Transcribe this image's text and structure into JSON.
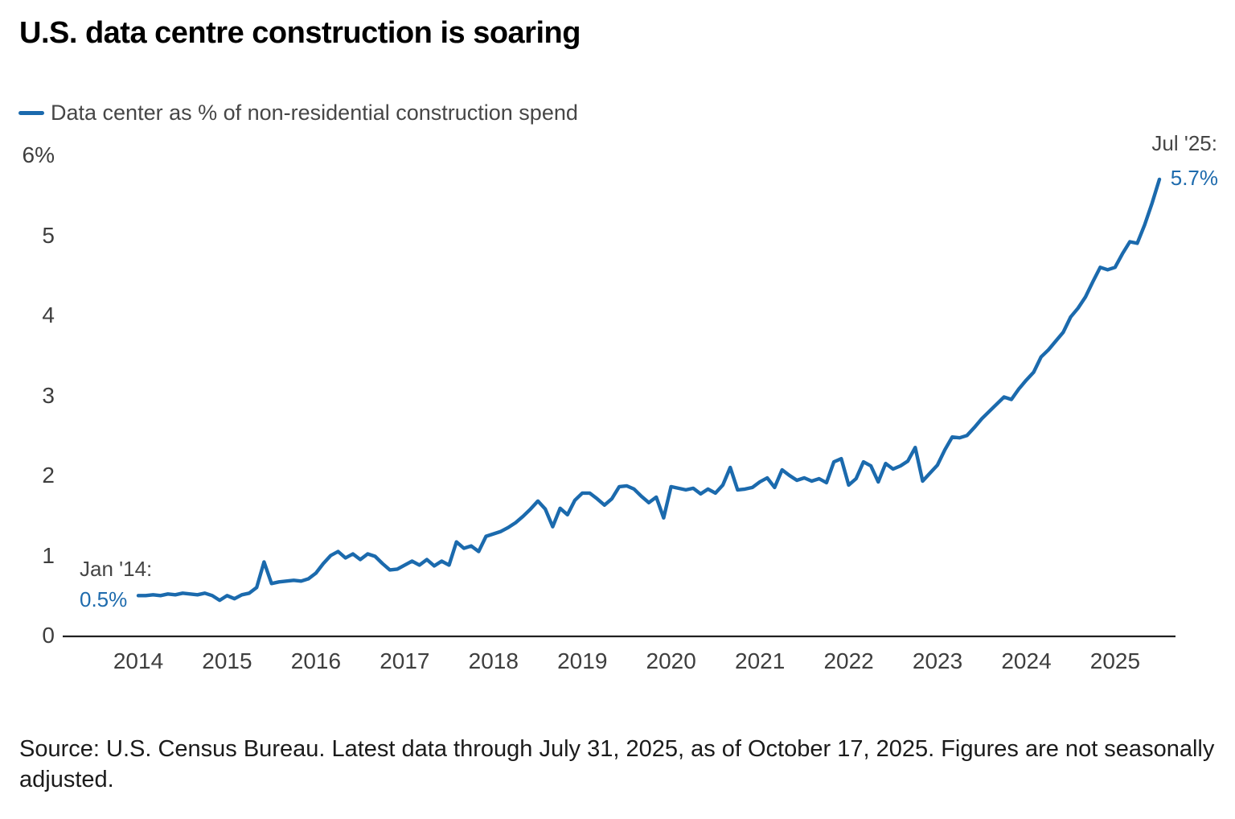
{
  "title": "U.S. data centre construction is soaring",
  "legend": {
    "label": "Data center as % of non-residential construction spend",
    "line_color": "#1b6aad"
  },
  "annotations": {
    "start_label": "Jan '14:",
    "start_value": "0.5%",
    "end_label": "Jul '25:",
    "end_value": "5.7%"
  },
  "source": "Source: U.S. Census Bureau. Latest data through July 31, 2025, as of October 17, 2025. Figures are not seasonally adjusted.",
  "chart_data": {
    "type": "line",
    "title": "U.S. data centre construction is soaring",
    "series_name": "Data center as % of non-residential construction spend",
    "unit": "percent",
    "frequency": "monthly",
    "start_month": "2014-01",
    "end_month": "2025-07",
    "x_tick_labels": [
      "2014",
      "2015",
      "2016",
      "2017",
      "2018",
      "2019",
      "2020",
      "2021",
      "2022",
      "2023",
      "2024",
      "2025"
    ],
    "y_tick_labels": [
      "6%",
      "5",
      "4",
      "3",
      "2",
      "1",
      "0"
    ],
    "y_ticks": [
      6,
      5,
      4,
      3,
      2,
      1,
      0
    ],
    "ylim": [
      0,
      6
    ],
    "grid": false,
    "legend_position": "top-left",
    "line_color": "#1b6aad",
    "axis_color": "#202020",
    "values": [
      0.5,
      0.5,
      0.51,
      0.5,
      0.52,
      0.51,
      0.53,
      0.52,
      0.51,
      0.53,
      0.5,
      0.44,
      0.5,
      0.46,
      0.51,
      0.53,
      0.6,
      0.92,
      0.65,
      0.67,
      0.68,
      0.69,
      0.68,
      0.71,
      0.78,
      0.9,
      1.0,
      1.05,
      0.97,
      1.02,
      0.95,
      1.02,
      0.99,
      0.9,
      0.82,
      0.83,
      0.88,
      0.93,
      0.88,
      0.95,
      0.87,
      0.93,
      0.88,
      1.17,
      1.09,
      1.12,
      1.05,
      1.24,
      1.27,
      1.3,
      1.35,
      1.41,
      1.49,
      1.58,
      1.68,
      1.58,
      1.36,
      1.59,
      1.51,
      1.69,
      1.78,
      1.78,
      1.71,
      1.63,
      1.71,
      1.86,
      1.87,
      1.83,
      1.74,
      1.66,
      1.73,
      1.47,
      1.86,
      1.84,
      1.82,
      1.84,
      1.77,
      1.83,
      1.78,
      1.88,
      2.1,
      1.82,
      1.83,
      1.85,
      1.92,
      1.97,
      1.85,
      2.07,
      2.0,
      1.94,
      1.97,
      1.93,
      1.96,
      1.91,
      2.17,
      2.21,
      1.88,
      1.96,
      2.17,
      2.12,
      1.92,
      2.15,
      2.08,
      2.12,
      2.18,
      2.35,
      1.93,
      2.03,
      2.13,
      2.32,
      2.48,
      2.47,
      2.5,
      2.6,
      2.71,
      2.8,
      2.89,
      2.98,
      2.95,
      3.08,
      3.19,
      3.29,
      3.48,
      3.57,
      3.68,
      3.79,
      3.98,
      4.09,
      4.23,
      4.42,
      4.6,
      4.57,
      4.6,
      4.77,
      4.92,
      4.9,
      5.13,
      5.4,
      5.7
    ],
    "highlight_points": [
      {
        "label": "Jan '14",
        "value": 0.5
      },
      {
        "label": "Jul '25",
        "value": 5.7
      }
    ]
  }
}
